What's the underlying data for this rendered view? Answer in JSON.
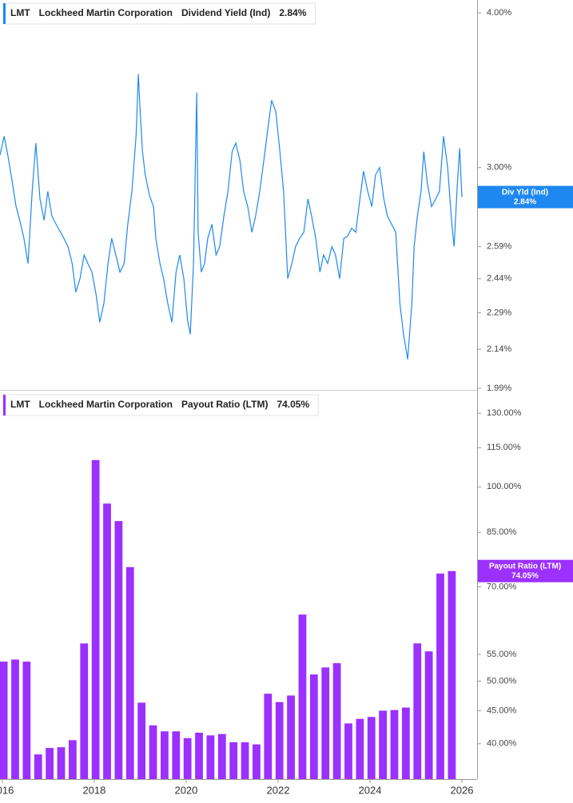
{
  "chart_data": [
    {
      "type": "line",
      "ticker": "LMT",
      "company": "Lockheed Martin Corporation",
      "log_scale": true,
      "series": [
        {
          "name": "Dividend Yield (Ind)",
          "short_name": "Div Yld (Ind)",
          "last_value_label": "2.84%",
          "color": "#1e88f0",
          "x": [
            2015.95,
            2016.04,
            2016.12,
            2016.21,
            2016.3,
            2016.38,
            2016.47,
            2016.56,
            2016.65,
            2016.73,
            2016.82,
            2016.91,
            2016.99,
            2017.08,
            2017.17,
            2017.34,
            2017.43,
            2017.52,
            2017.6,
            2017.69,
            2017.78,
            2017.86,
            2017.95,
            2018.04,
            2018.12,
            2018.21,
            2018.3,
            2018.38,
            2018.47,
            2018.56,
            2018.65,
            2018.73,
            2018.82,
            2018.91,
            2018.96,
            2018.99,
            2019.05,
            2019.11,
            2019.2,
            2019.29,
            2019.34,
            2019.43,
            2019.51,
            2019.6,
            2019.69,
            2019.78,
            2019.86,
            2019.95,
            2020.03,
            2020.09,
            2020.16,
            2020.23,
            2020.26,
            2020.33,
            2020.4,
            2020.47,
            2020.56,
            2020.65,
            2020.73,
            2020.82,
            2020.91,
            2021.0,
            2021.08,
            2021.17,
            2021.25,
            2021.34,
            2021.43,
            2021.51,
            2021.6,
            2021.69,
            2021.78,
            2021.86,
            2021.95,
            2022.04,
            2022.12,
            2022.21,
            2022.3,
            2022.38,
            2022.47,
            2022.56,
            2022.65,
            2022.73,
            2022.82,
            2022.91,
            2022.99,
            2023.08,
            2023.17,
            2023.25,
            2023.34,
            2023.43,
            2023.51,
            2023.6,
            2023.69,
            2023.78,
            2023.86,
            2023.95,
            2024.04,
            2024.12,
            2024.21,
            2024.3,
            2024.38,
            2024.47,
            2024.56,
            2024.65,
            2024.73,
            2024.82,
            2024.91,
            2024.96,
            2025.03,
            2025.11,
            2025.17,
            2025.25,
            2025.34,
            2025.43,
            2025.51,
            2025.6,
            2025.69,
            2025.78,
            2025.83,
            2025.9,
            2025.95,
            2026.0
          ],
          "values": [
            3.07,
            3.18,
            3.07,
            2.93,
            2.79,
            2.72,
            2.63,
            2.51,
            2.87,
            3.14,
            2.83,
            2.72,
            2.87,
            2.74,
            2.7,
            2.63,
            2.59,
            2.51,
            2.38,
            2.44,
            2.55,
            2.51,
            2.47,
            2.37,
            2.25,
            2.33,
            2.51,
            2.63,
            2.55,
            2.47,
            2.51,
            2.7,
            2.87,
            3.18,
            3.57,
            3.38,
            3.09,
            2.96,
            2.85,
            2.79,
            2.63,
            2.51,
            2.44,
            2.33,
            2.25,
            2.47,
            2.55,
            2.44,
            2.26,
            2.2,
            2.51,
            3.45,
            2.66,
            2.47,
            2.51,
            2.63,
            2.7,
            2.55,
            2.59,
            2.74,
            2.87,
            3.09,
            3.14,
            3.04,
            2.87,
            2.79,
            2.66,
            2.74,
            2.87,
            3.04,
            3.23,
            3.4,
            3.33,
            3.09,
            2.87,
            2.44,
            2.51,
            2.59,
            2.63,
            2.66,
            2.83,
            2.74,
            2.63,
            2.47,
            2.55,
            2.51,
            2.59,
            2.55,
            2.44,
            2.63,
            2.64,
            2.68,
            2.66,
            2.83,
            2.98,
            2.87,
            2.79,
            2.96,
            3.0,
            2.83,
            2.74,
            2.7,
            2.66,
            2.33,
            2.2,
            2.1,
            2.33,
            2.59,
            2.74,
            2.87,
            3.09,
            2.91,
            2.79,
            2.83,
            2.87,
            3.18,
            3.0,
            2.7,
            2.59,
            2.91,
            3.11,
            2.84
          ]
        }
      ],
      "xlim": [
        2015.95,
        2026.33
      ],
      "ylim": [
        1.984,
        4.097
      ],
      "yticks": [
        {
          "value": 1.99,
          "label": "1.99%"
        },
        {
          "value": 2.14,
          "label": "2.14%"
        },
        {
          "value": 2.29,
          "label": "2.29%"
        },
        {
          "value": 2.44,
          "label": "2.44%"
        },
        {
          "value": 2.59,
          "label": "2.59%"
        },
        {
          "value": 3.0,
          "label": "3.00%"
        },
        {
          "value": 4.0,
          "label": "4.00%"
        }
      ]
    },
    {
      "type": "bar",
      "ticker": "LMT",
      "company": "Lockheed Martin Corporation",
      "log_scale": true,
      "series": [
        {
          "name": "Payout Ratio (LTM)",
          "short_name": "Payout Ratio (LTM)",
          "last_value_label": "74.05%",
          "color": "#9b30ff",
          "x": [
            2016.03,
            2016.28,
            2016.53,
            2016.78,
            2017.03,
            2017.28,
            2017.53,
            2017.78,
            2018.03,
            2018.28,
            2018.53,
            2018.78,
            2019.03,
            2019.28,
            2019.53,
            2019.78,
            2020.03,
            2020.28,
            2020.53,
            2020.78,
            2021.03,
            2021.28,
            2021.53,
            2021.78,
            2022.03,
            2022.28,
            2022.53,
            2022.78,
            2023.03,
            2023.28,
            2023.53,
            2023.78,
            2024.03,
            2024.28,
            2024.53,
            2024.78,
            2025.03,
            2025.28,
            2025.53,
            2025.78
          ],
          "values": [
            53.6,
            54.0,
            53.6,
            38.5,
            39.4,
            39.5,
            40.5,
            57.2,
            110.0,
            94.2,
            88.5,
            75.1,
            46.3,
            42.7,
            41.8,
            41.8,
            40.8,
            41.6,
            41.2,
            41.4,
            40.2,
            40.2,
            39.9,
            47.8,
            46.4,
            47.5,
            63.4,
            51.2,
            52.5,
            53.3,
            43.0,
            43.7,
            44.0,
            45.0,
            45.1,
            45.5,
            57.2,
            55.6,
            73.4,
            74.05
          ]
        }
      ],
      "xlim": [
        2015.95,
        2026.33
      ],
      "ylim": [
        35.26,
        140.5
      ],
      "yticks": [
        {
          "value": 40,
          "label": "40.00%"
        },
        {
          "value": 45,
          "label": "45.00%"
        },
        {
          "value": 50,
          "label": "50.00%"
        },
        {
          "value": 55,
          "label": "55.00%"
        },
        {
          "value": 70,
          "label": "70.00%"
        },
        {
          "value": 85,
          "label": "85.00%"
        },
        {
          "value": 100,
          "label": "100.00%"
        },
        {
          "value": 115,
          "label": "115.00%"
        },
        {
          "value": 130,
          "label": "130.00%"
        }
      ],
      "xticks": [
        2016,
        2018,
        2020,
        2022,
        2024,
        2026
      ]
    }
  ]
}
